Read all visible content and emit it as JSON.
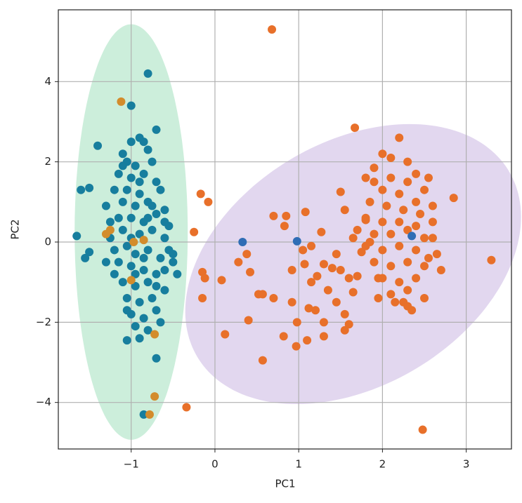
{
  "chart_data": {
    "type": "scatter",
    "xlabel": "PC1",
    "ylabel": "PC2",
    "xlim": [
      -1.87,
      3.54
    ],
    "ylim": [
      -5.16,
      5.79
    ],
    "xticks": [
      {
        "value": -1,
        "label": "−1"
      },
      0,
      1,
      2,
      3
    ],
    "yticks": [
      {
        "value": -4,
        "label": "−4"
      },
      {
        "value": -2,
        "label": "−2"
      },
      0,
      2,
      4
    ],
    "grid": true,
    "ellipses": [
      {
        "center": [
          -1.0,
          0.25
        ],
        "width": 1.35,
        "height": 10.36,
        "angle": 0,
        "color": "#7fd4a6",
        "alpha": 0.4
      },
      {
        "center": [
          1.65,
          -0.55
        ],
        "width": 7.16,
        "height": 3.68,
        "angle": 75,
        "color": "#b79ad8",
        "alpha": 0.4
      }
    ],
    "series": [
      {
        "color": "#177e9e",
        "x": [
          -0.8,
          -1.0,
          -0.7,
          -1.4,
          -1.6,
          -1.5,
          -1.65,
          -1.55,
          -1.5,
          -1.05,
          -0.9,
          -0.7,
          -0.85,
          -0.65,
          -0.5,
          -0.45,
          -0.55,
          -1.3,
          -1.25,
          -1.2,
          -1.1,
          -1.0,
          -0.9,
          -0.85,
          -0.8,
          -1.05,
          -0.95,
          -0.75,
          -1.15,
          -1.0,
          -0.85,
          -0.7,
          -1.2,
          -1.05,
          -0.9,
          -0.65,
          -1.1,
          -0.95,
          -0.8,
          -0.6,
          -1.15,
          -1.0,
          -0.85,
          -0.7,
          -1.1,
          -0.9,
          -0.75,
          -0.6,
          -1.05,
          -0.95,
          -0.8,
          -0.65,
          -1.15,
          -1.0,
          -0.85,
          -0.7,
          -1.1,
          -0.95,
          -0.8,
          -0.6,
          -1.05,
          -0.9,
          -0.75,
          -1.0,
          -0.85,
          -0.7,
          -0.95,
          -0.8,
          -1.2,
          -1.25,
          -0.55,
          -0.6,
          -1.3,
          -0.75,
          -0.9,
          -1.0,
          -0.85,
          -0.95,
          -0.8,
          -1.05,
          -0.7,
          -1.1,
          -0.6,
          -0.5
        ],
        "y": [
          4.2,
          3.4,
          2.8,
          2.4,
          1.3,
          1.35,
          0.15,
          -0.4,
          -0.25,
          -2.45,
          -2.4,
          -2.9,
          -4.3,
          -2.0,
          -0.5,
          -0.8,
          0.4,
          0.9,
          0.5,
          -0.8,
          2.2,
          2.5,
          2.6,
          2.5,
          2.3,
          2.0,
          1.9,
          2.0,
          1.7,
          1.6,
          1.7,
          1.5,
          1.3,
          1.3,
          1.2,
          1.3,
          1.0,
          0.9,
          1.0,
          0.8,
          0.6,
          0.6,
          0.5,
          0.7,
          0.3,
          0.2,
          0.3,
          0.1,
          -0.1,
          -0.3,
          -0.2,
          -0.4,
          -0.5,
          -0.6,
          -0.7,
          -0.8,
          -1.0,
          -1.1,
          -1.0,
          -1.2,
          -1.4,
          -1.5,
          -1.4,
          -1.8,
          -1.9,
          -1.7,
          -2.1,
          -2.2,
          -0.2,
          0.1,
          -0.2,
          -0.7,
          -0.5,
          0.9,
          1.5,
          0.1,
          -0.4,
          -0.8,
          0.6,
          -1.7,
          -1.1,
          1.9,
          0.5,
          -0.3
        ]
      },
      {
        "color": "#e8702a",
        "x": [
          0.68,
          1.67,
          2.48,
          -0.34,
          3.3,
          -0.17,
          -0.08,
          -0.25,
          -0.15,
          -0.12,
          -0.15,
          0.08,
          0.12,
          0.28,
          0.38,
          0.4,
          0.42,
          0.52,
          0.57,
          0.57,
          0.7,
          0.7,
          0.83,
          0.85,
          0.82,
          0.92,
          0.92,
          0.97,
          0.98,
          1.05,
          1.07,
          1.08,
          1.1,
          1.12,
          1.15,
          1.15,
          1.2,
          1.22,
          1.27,
          1.3,
          1.3,
          1.3,
          1.35,
          1.4,
          1.45,
          1.45,
          1.5,
          1.5,
          1.55,
          1.55,
          1.6,
          1.6,
          1.65,
          1.7,
          1.55,
          1.65,
          1.75,
          1.8,
          1.8,
          1.85,
          1.9,
          1.95,
          2.2,
          2.1,
          2.4,
          2.55,
          2.85,
          2.7,
          2.55,
          2.6,
          2.3,
          2.25,
          2.0,
          2.3,
          1.9,
          2.1,
          2.3,
          2.5,
          2.0,
          2.2,
          2.4,
          2.6,
          1.85,
          2.05,
          2.25,
          2.45,
          1.8,
          2.0,
          2.2,
          2.4,
          2.6,
          1.7,
          1.9,
          2.1,
          2.3,
          2.5,
          1.8,
          2.0,
          2.2,
          2.4,
          2.65,
          1.9,
          2.1,
          2.3,
          2.5,
          2.0,
          2.2,
          2.4,
          2.1,
          2.3,
          2.5,
          1.95,
          2.35,
          2.15
        ],
        "y": [
          5.3,
          2.85,
          -4.68,
          -4.12,
          -0.45,
          1.2,
          1.0,
          0.25,
          -0.75,
          -0.9,
          -1.4,
          -0.95,
          -2.3,
          -0.5,
          -0.3,
          -1.95,
          -0.75,
          -1.3,
          -1.3,
          -2.95,
          0.65,
          -1.4,
          0.4,
          0.65,
          -2.35,
          -0.7,
          -1.5,
          -2.6,
          -2.0,
          -0.2,
          -0.55,
          0.75,
          -2.45,
          -1.65,
          -0.1,
          -1.0,
          -1.7,
          -0.85,
          0.25,
          -0.55,
          -2.0,
          -2.35,
          -1.2,
          -0.65,
          -0.3,
          -1.5,
          -0.7,
          1.25,
          -1.8,
          -2.2,
          -0.9,
          -2.05,
          -1.25,
          -0.85,
          0.8,
          0.1,
          -0.25,
          0.55,
          1.6,
          0.0,
          1.85,
          -0.9,
          2.6,
          2.1,
          1.7,
          1.6,
          1.1,
          -0.7,
          -0.4,
          0.1,
          -1.6,
          -1.5,
          2.2,
          2.0,
          1.5,
          1.6,
          1.5,
          1.3,
          1.3,
          1.2,
          1.0,
          0.9,
          1.0,
          0.9,
          0.8,
          0.7,
          0.6,
          0.5,
          0.5,
          0.4,
          0.5,
          0.3,
          0.2,
          0.2,
          0.3,
          0.1,
          -0.1,
          -0.2,
          -0.1,
          -0.2,
          -0.3,
          -0.5,
          -0.6,
          -0.5,
          -0.6,
          -0.9,
          -1.0,
          -0.9,
          -1.3,
          -1.2,
          -1.4,
          -1.4,
          -1.7,
          -1.5
        ]
      },
      {
        "color": "#d38c2c",
        "x": [
          -1.12,
          -1.25,
          -1.3,
          -0.97,
          -0.85,
          -1.0,
          -0.72,
          -0.72,
          -0.78
        ],
        "y": [
          3.5,
          0.3,
          0.2,
          0.0,
          0.05,
          -0.95,
          -2.3,
          -3.85,
          -4.3
        ]
      },
      {
        "color": "#2f6db5",
        "x": [
          0.33,
          0.98,
          2.35
        ],
        "y": [
          0.0,
          0.02,
          0.15
        ]
      }
    ]
  }
}
